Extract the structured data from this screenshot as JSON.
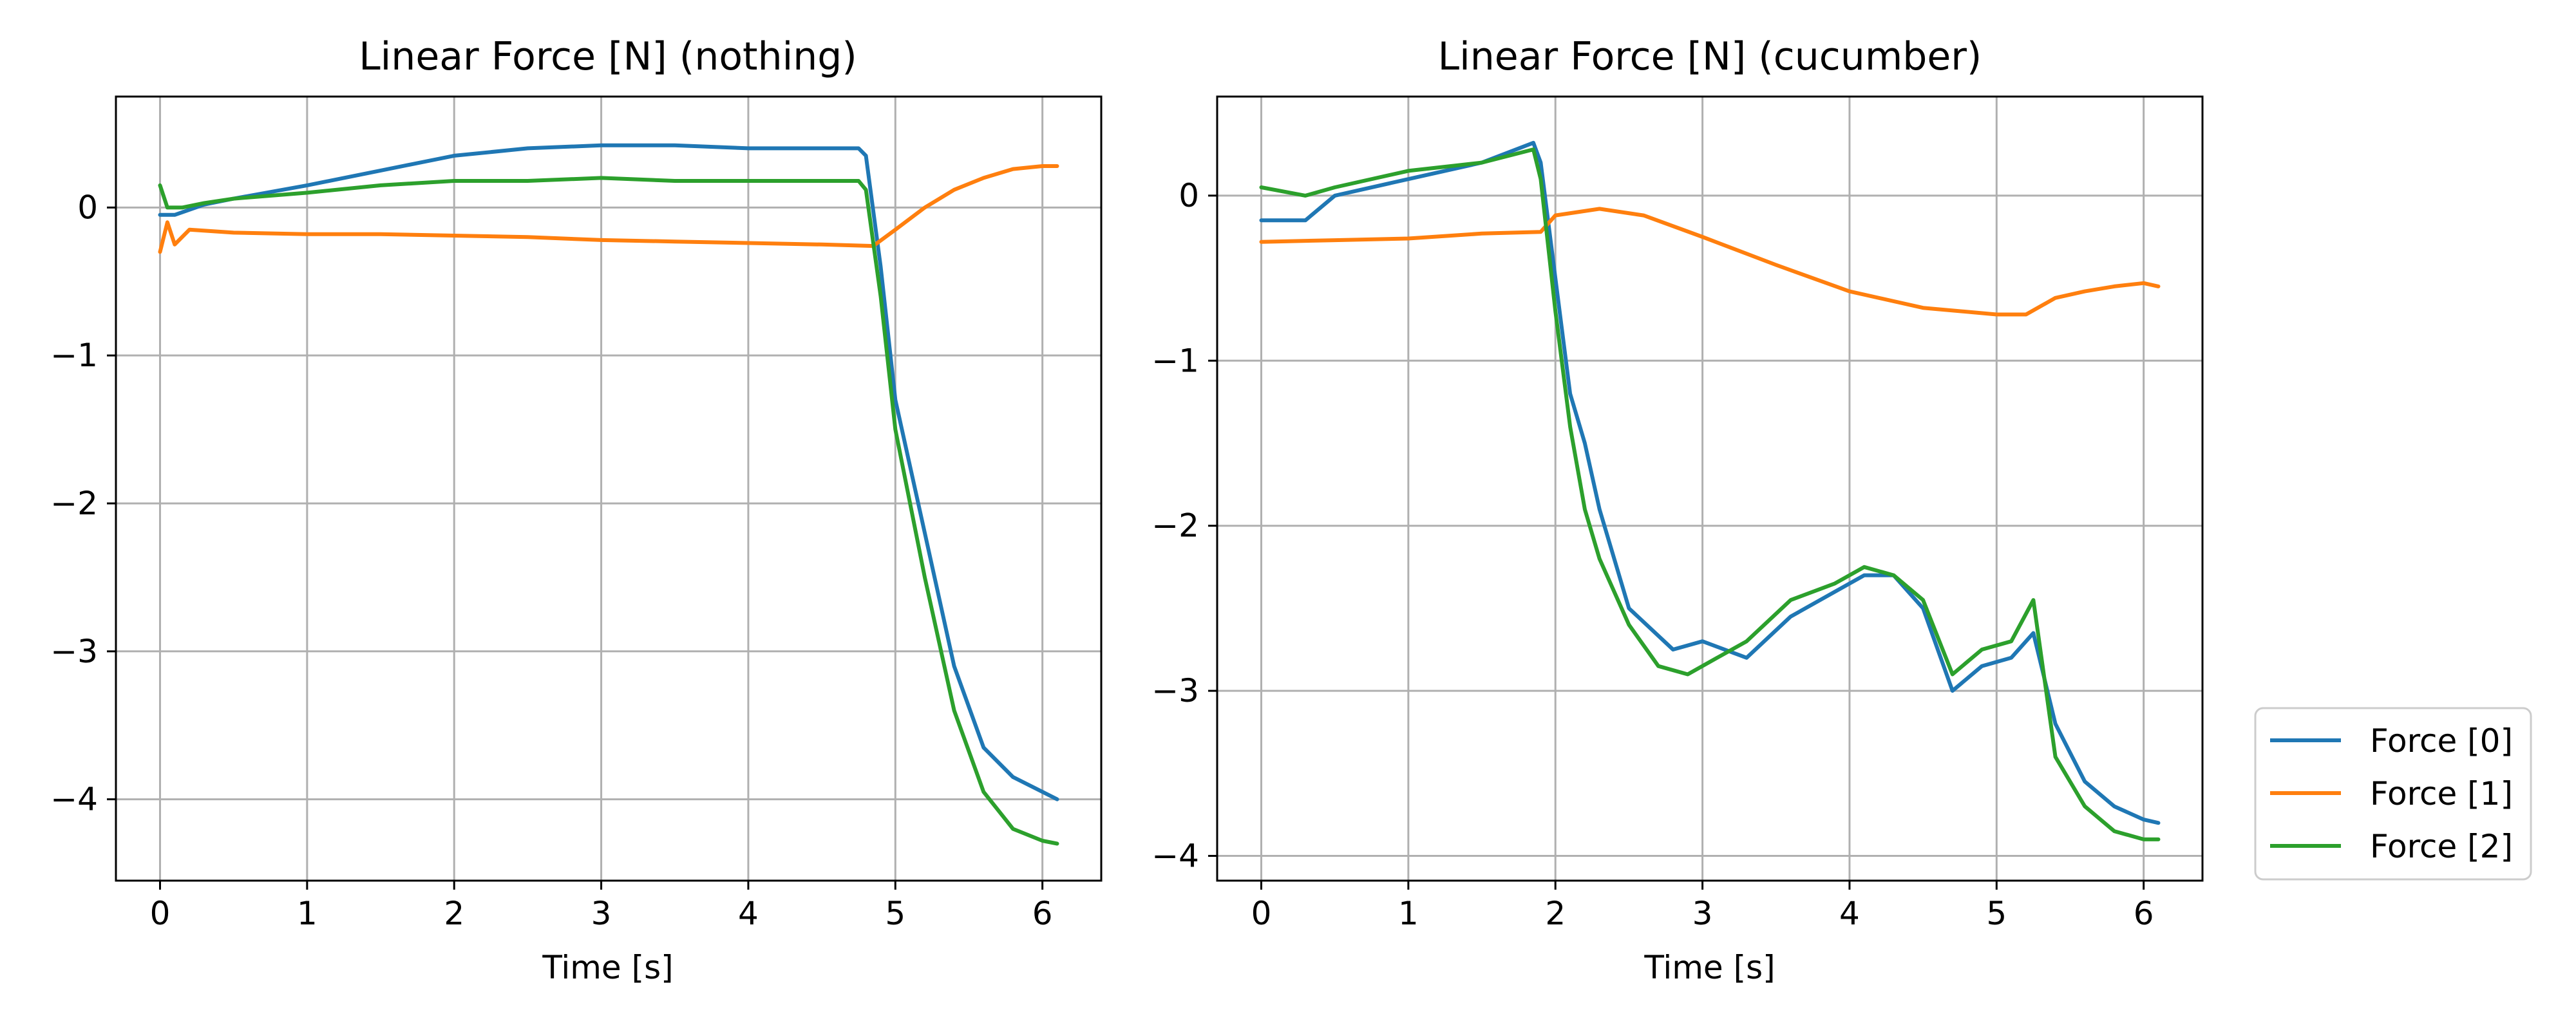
{
  "chart_data": [
    {
      "type": "line",
      "title": "Linear Force [N] (nothing)",
      "xlabel": "Time [s]",
      "ylabel": "",
      "xlim": [
        -0.3,
        6.4
      ],
      "ylim": [
        -4.55,
        0.75
      ],
      "xticks": [
        0,
        1,
        2,
        3,
        4,
        5,
        6
      ],
      "xtick_labels": [
        "0",
        "1",
        "2",
        "3",
        "4",
        "5",
        "6"
      ],
      "yticks": [
        0,
        -1,
        -2,
        -3,
        -4
      ],
      "ytick_labels": [
        "0",
        "−1",
        "−2",
        "−3",
        "−4"
      ],
      "grid": true,
      "series": [
        {
          "name": "Force [0]",
          "color": "#1f77b4",
          "x": [
            0,
            0.1,
            0.3,
            0.5,
            1.0,
            1.5,
            2.0,
            2.5,
            3.0,
            3.5,
            4.0,
            4.5,
            4.75,
            4.8,
            4.9,
            5.0,
            5.2,
            5.4,
            5.6,
            5.8,
            6.0,
            6.1
          ],
          "y": [
            -0.05,
            -0.05,
            0.02,
            0.06,
            0.15,
            0.25,
            0.35,
            0.4,
            0.42,
            0.42,
            0.4,
            0.4,
            0.4,
            0.35,
            -0.4,
            -1.3,
            -2.2,
            -3.1,
            -3.65,
            -3.85,
            -3.95,
            -4.0
          ]
        },
        {
          "name": "Force [1]",
          "color": "#ff7f0e",
          "x": [
            0,
            0.05,
            0.1,
            0.2,
            0.5,
            1.0,
            1.5,
            2.0,
            2.5,
            3.0,
            3.5,
            4.0,
            4.5,
            4.85,
            5.0,
            5.2,
            5.4,
            5.6,
            5.8,
            6.0,
            6.1
          ],
          "y": [
            -0.3,
            -0.1,
            -0.25,
            -0.15,
            -0.17,
            -0.18,
            -0.18,
            -0.19,
            -0.2,
            -0.22,
            -0.23,
            -0.24,
            -0.25,
            -0.26,
            -0.15,
            0.0,
            0.12,
            0.2,
            0.26,
            0.28,
            0.28
          ]
        },
        {
          "name": "Force [2]",
          "color": "#2ca02c",
          "x": [
            0,
            0.05,
            0.15,
            0.3,
            0.5,
            1.0,
            1.5,
            2.0,
            2.5,
            3.0,
            3.5,
            4.0,
            4.5,
            4.75,
            4.8,
            4.9,
            5.0,
            5.2,
            5.4,
            5.6,
            5.8,
            6.0,
            6.1
          ],
          "y": [
            0.15,
            0.0,
            0.0,
            0.03,
            0.06,
            0.1,
            0.15,
            0.18,
            0.18,
            0.2,
            0.18,
            0.18,
            0.18,
            0.18,
            0.12,
            -0.6,
            -1.5,
            -2.5,
            -3.4,
            -3.95,
            -4.2,
            -4.28,
            -4.3
          ]
        }
      ]
    },
    {
      "type": "line",
      "title": "Linear Force [N] (cucumber)",
      "xlabel": "Time [s]",
      "ylabel": "",
      "xlim": [
        -0.3,
        6.4
      ],
      "ylim": [
        -4.15,
        0.6
      ],
      "xticks": [
        0,
        1,
        2,
        3,
        4,
        5,
        6
      ],
      "xtick_labels": [
        "0",
        "1",
        "2",
        "3",
        "4",
        "5",
        "6"
      ],
      "yticks": [
        0,
        -1,
        -2,
        -3,
        -4
      ],
      "ytick_labels": [
        "0",
        "−1",
        "−2",
        "−3",
        "−4"
      ],
      "grid": true,
      "series": [
        {
          "name": "Force [0]",
          "color": "#1f77b4",
          "x": [
            0,
            0.3,
            0.5,
            1.0,
            1.5,
            1.85,
            1.9,
            2.0,
            2.1,
            2.2,
            2.3,
            2.5,
            2.8,
            3.0,
            3.3,
            3.6,
            3.9,
            4.1,
            4.3,
            4.5,
            4.7,
            4.9,
            5.1,
            5.25,
            5.4,
            5.6,
            5.8,
            6.0,
            6.1
          ],
          "y": [
            -0.15,
            -0.15,
            0.0,
            0.1,
            0.2,
            0.32,
            0.2,
            -0.5,
            -1.2,
            -1.5,
            -1.9,
            -2.5,
            -2.75,
            -2.7,
            -2.8,
            -2.55,
            -2.4,
            -2.3,
            -2.3,
            -2.5,
            -3.0,
            -2.85,
            -2.8,
            -2.65,
            -3.2,
            -3.55,
            -3.7,
            -3.78,
            -3.8
          ]
        },
        {
          "name": "Force [1]",
          "color": "#ff7f0e",
          "x": [
            0,
            0.5,
            1.0,
            1.5,
            1.9,
            2.0,
            2.3,
            2.6,
            3.0,
            3.5,
            4.0,
            4.5,
            5.0,
            5.2,
            5.4,
            5.6,
            5.8,
            6.0,
            6.1
          ],
          "y": [
            -0.28,
            -0.27,
            -0.26,
            -0.23,
            -0.22,
            -0.12,
            -0.08,
            -0.12,
            -0.25,
            -0.42,
            -0.58,
            -0.68,
            -0.72,
            -0.72,
            -0.62,
            -0.58,
            -0.55,
            -0.53,
            -0.55
          ]
        },
        {
          "name": "Force [2]",
          "color": "#2ca02c",
          "x": [
            0,
            0.3,
            0.5,
            1.0,
            1.5,
            1.85,
            1.9,
            2.0,
            2.1,
            2.2,
            2.3,
            2.5,
            2.7,
            2.9,
            3.1,
            3.3,
            3.6,
            3.9,
            4.1,
            4.3,
            4.5,
            4.7,
            4.9,
            5.1,
            5.25,
            5.4,
            5.6,
            5.8,
            6.0,
            6.1
          ],
          "y": [
            0.05,
            0.0,
            0.05,
            0.15,
            0.2,
            0.28,
            0.1,
            -0.7,
            -1.4,
            -1.9,
            -2.2,
            -2.6,
            -2.85,
            -2.9,
            -2.8,
            -2.7,
            -2.45,
            -2.35,
            -2.25,
            -2.3,
            -2.45,
            -2.9,
            -2.75,
            -2.7,
            -2.45,
            -3.4,
            -3.7,
            -3.85,
            -3.9,
            -3.9
          ]
        }
      ]
    }
  ],
  "legend": {
    "placement": "lower-right-outside",
    "entries": [
      {
        "label": "Force [0]",
        "color": "#1f77b4"
      },
      {
        "label": "Force [1]",
        "color": "#ff7f0e"
      },
      {
        "label": "Force [2]",
        "color": "#2ca02c"
      }
    ]
  }
}
